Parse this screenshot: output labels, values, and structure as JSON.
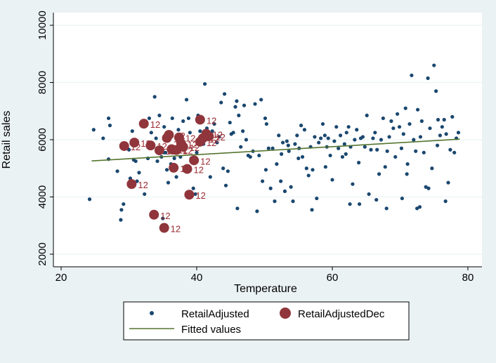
{
  "chart_data": {
    "type": "scatter",
    "title": "",
    "xlabel": "Temperature",
    "ylabel": "Retail sales",
    "xlim": [
      20,
      80
    ],
    "ylim": [
      2000,
      10000
    ],
    "xticks": [
      "20",
      "40",
      "60",
      "80"
    ],
    "yticks": [
      "2000",
      "4000",
      "6000",
      "8000",
      "10000"
    ],
    "grid": "horizontal",
    "legend_position": "bottom",
    "colors": {
      "adjusted": "#1a476f",
      "dec": "#90353b",
      "fit": "#55752f",
      "plot_bg": "#ffffff",
      "outer_bg": "#eaf2f3",
      "grid": "#eaf2f3"
    },
    "series": [
      {
        "name": "RetailAdjusted",
        "marker": "small-dot",
        "points": [
          [
            24.2,
            3920
          ],
          [
            24.8,
            6350
          ],
          [
            26.2,
            6050
          ],
          [
            27.0,
            6750
          ],
          [
            27.2,
            6500
          ],
          [
            27.0,
            5320
          ],
          [
            28.3,
            4900
          ],
          [
            28.8,
            3200
          ],
          [
            28.9,
            3550
          ],
          [
            29.2,
            3750
          ],
          [
            29.5,
            5800
          ],
          [
            29.8,
            5700
          ],
          [
            30.2,
            4650
          ],
          [
            30.5,
            6300
          ],
          [
            30.7,
            5300
          ],
          [
            31.0,
            5250
          ],
          [
            31.2,
            4550
          ],
          [
            31.5,
            4850
          ],
          [
            32.0,
            6550
          ],
          [
            32.3,
            4100
          ],
          [
            32.8,
            5350
          ],
          [
            33.0,
            6750
          ],
          [
            33.3,
            6250
          ],
          [
            33.8,
            7500
          ],
          [
            34.0,
            6050
          ],
          [
            34.2,
            5250
          ],
          [
            34.5,
            6850
          ],
          [
            34.8,
            5400
          ],
          [
            35.0,
            3250
          ],
          [
            35.2,
            6450
          ],
          [
            35.4,
            5550
          ],
          [
            35.6,
            4950
          ],
          [
            35.8,
            4500
          ],
          [
            36.2,
            5150
          ],
          [
            36.4,
            6750
          ],
          [
            36.7,
            5350
          ],
          [
            37.0,
            4700
          ],
          [
            37.3,
            6350
          ],
          [
            37.6,
            5400
          ],
          [
            38.0,
            6650
          ],
          [
            38.2,
            5850
          ],
          [
            38.5,
            7400
          ],
          [
            38.8,
            6750
          ],
          [
            39.0,
            6250
          ],
          [
            39.2,
            5350
          ],
          [
            39.5,
            4300
          ],
          [
            39.8,
            4100
          ],
          [
            40.0,
            5550
          ],
          [
            40.2,
            6850
          ],
          [
            40.5,
            6300
          ],
          [
            41.0,
            5850
          ],
          [
            41.2,
            7950
          ],
          [
            41.5,
            6400
          ],
          [
            41.8,
            6150
          ],
          [
            42.0,
            4700
          ],
          [
            42.3,
            6300
          ],
          [
            42.6,
            6550
          ],
          [
            43.0,
            5900
          ],
          [
            43.3,
            6100
          ],
          [
            43.6,
            7300
          ],
          [
            43.9,
            5000
          ],
          [
            44.1,
            7600
          ],
          [
            44.3,
            4400
          ],
          [
            44.6,
            4900
          ],
          [
            44.9,
            6600
          ],
          [
            45.1,
            6200
          ],
          [
            45.4,
            6250
          ],
          [
            45.7,
            7150
          ],
          [
            45.9,
            7350
          ],
          [
            46.2,
            6850
          ],
          [
            46.5,
            5750
          ],
          [
            46.8,
            6300
          ],
          [
            47.0,
            7200
          ],
          [
            47.3,
            6000
          ],
          [
            47.6,
            5450
          ],
          [
            47.9,
            5400
          ],
          [
            48.3,
            5600
          ],
          [
            48.6,
            7250
          ],
          [
            48.9,
            3500
          ],
          [
            49.2,
            5450
          ],
          [
            49.5,
            7400
          ],
          [
            49.7,
            4550
          ],
          [
            50.1,
            6750
          ],
          [
            50.3,
            6550
          ],
          [
            50.6,
            5700
          ],
          [
            50.9,
            4300
          ],
          [
            51.2,
            5700
          ],
          [
            51.5,
            3850
          ],
          [
            51.8,
            5150
          ],
          [
            52.1,
            6150
          ],
          [
            52.4,
            4550
          ],
          [
            52.7,
            5900
          ],
          [
            53.0,
            4200
          ],
          [
            53.3,
            5950
          ],
          [
            53.6,
            5600
          ],
          [
            53.9,
            4350
          ],
          [
            54.2,
            3850
          ],
          [
            54.5,
            5850
          ],
          [
            54.8,
            6150
          ],
          [
            55.1,
            5700
          ],
          [
            55.4,
            6500
          ],
          [
            55.6,
            5400
          ],
          [
            55.9,
            6350
          ],
          [
            56.2,
            5000
          ],
          [
            56.5,
            4750
          ],
          [
            56.8,
            5750
          ],
          [
            57.1,
            4950
          ],
          [
            57.4,
            6100
          ],
          [
            57.7,
            3950
          ],
          [
            58.0,
            5900
          ],
          [
            58.3,
            6050
          ],
          [
            58.6,
            6550
          ],
          [
            58.9,
            6150
          ],
          [
            59.2,
            5750
          ],
          [
            59.4,
            6050
          ],
          [
            59.7,
            5450
          ],
          [
            60.0,
            4600
          ],
          [
            60.3,
            5950
          ],
          [
            60.6,
            6450
          ],
          [
            60.9,
            5700
          ],
          [
            61.2,
            6150
          ],
          [
            61.5,
            5400
          ],
          [
            61.8,
            5850
          ],
          [
            62.1,
            6250
          ],
          [
            62.4,
            6450
          ],
          [
            62.7,
            5750
          ],
          [
            63.0,
            4450
          ],
          [
            63.3,
            6000
          ],
          [
            63.6,
            6350
          ],
          [
            63.9,
            5200
          ],
          [
            64.2,
            6050
          ],
          [
            64.5,
            6100
          ],
          [
            64.8,
            5750
          ],
          [
            65.1,
            6850
          ],
          [
            65.4,
            4100
          ],
          [
            65.7,
            5650
          ],
          [
            66.0,
            6050
          ],
          [
            66.3,
            6250
          ],
          [
            66.6,
            5650
          ],
          [
            66.9,
            4800
          ],
          [
            67.2,
            6000
          ],
          [
            67.5,
            6750
          ],
          [
            67.8,
            5050
          ],
          [
            68.1,
            5600
          ],
          [
            68.4,
            6100
          ],
          [
            68.7,
            6650
          ],
          [
            69.0,
            6400
          ],
          [
            69.3,
            5400
          ],
          [
            69.6,
            6900
          ],
          [
            69.9,
            6450
          ],
          [
            70.2,
            5700
          ],
          [
            70.5,
            6200
          ],
          [
            70.8,
            7100
          ],
          [
            71.1,
            5150
          ],
          [
            71.4,
            6550
          ],
          [
            71.7,
            8250
          ],
          [
            72.0,
            6000
          ],
          [
            72.3,
            5600
          ],
          [
            72.6,
            7050
          ],
          [
            72.9,
            3650
          ],
          [
            73.2,
            6650
          ],
          [
            73.5,
            5550
          ],
          [
            73.8,
            4350
          ],
          [
            74.1,
            8150
          ],
          [
            74.4,
            6400
          ],
          [
            74.7,
            5000
          ],
          [
            75.0,
            8600
          ],
          [
            75.3,
            7700
          ],
          [
            75.6,
            6700
          ],
          [
            75.9,
            6150
          ],
          [
            76.2,
            6450
          ],
          [
            76.5,
            6700
          ],
          [
            76.8,
            6200
          ],
          [
            77.1,
            4500
          ],
          [
            77.4,
            5650
          ],
          [
            77.7,
            6800
          ],
          [
            78.0,
            5550
          ],
          [
            78.3,
            6050
          ],
          [
            78.6,
            6250
          ],
          [
            73.0,
            6100
          ],
          [
            35.2,
            5550
          ],
          [
            30.0,
            5650
          ],
          [
            62.0,
            5500
          ],
          [
            66.5,
            3900
          ],
          [
            52.5,
            5500
          ],
          [
            55.0,
            5350
          ],
          [
            46.0,
            3600
          ],
          [
            59.0,
            5050
          ],
          [
            68.0,
            3600
          ],
          [
            72.5,
            3600
          ],
          [
            62.6,
            3750
          ],
          [
            57.0,
            3550
          ],
          [
            74.2,
            4300
          ],
          [
            76.7,
            3850
          ],
          [
            50.2,
            4950
          ],
          [
            53.5,
            5800
          ],
          [
            64.0,
            3750
          ],
          [
            70.3,
            3950
          ],
          [
            71.0,
            4800
          ],
          [
            75.5,
            5800
          ]
        ]
      },
      {
        "name": "RetailAdjustedDec",
        "marker": "large-dot",
        "point_label": "12",
        "points": [
          [
            29.3,
            5780
          ],
          [
            30.4,
            4450
          ],
          [
            30.8,
            5900
          ],
          [
            32.2,
            6560
          ],
          [
            33.2,
            5800
          ],
          [
            33.7,
            3380
          ],
          [
            34.5,
            5630
          ],
          [
            35.2,
            2920
          ],
          [
            35.6,
            6060
          ],
          [
            35.9,
            6170
          ],
          [
            36.3,
            5670
          ],
          [
            36.6,
            5020
          ],
          [
            37.0,
            5640
          ],
          [
            37.4,
            6080
          ],
          [
            37.7,
            5870
          ],
          [
            38.0,
            5750
          ],
          [
            38.6,
            4980
          ],
          [
            38.9,
            4080
          ],
          [
            39.6,
            5280
          ],
          [
            40.5,
            6700
          ],
          [
            40.5,
            5930
          ],
          [
            40.9,
            6050
          ],
          [
            41.4,
            6210
          ],
          [
            41.8,
            6120
          ]
        ]
      },
      {
        "name": "Fitted values",
        "marker": "line",
        "points": [
          [
            24.5,
            5260
          ],
          [
            78.8,
            6020
          ]
        ]
      }
    ]
  }
}
